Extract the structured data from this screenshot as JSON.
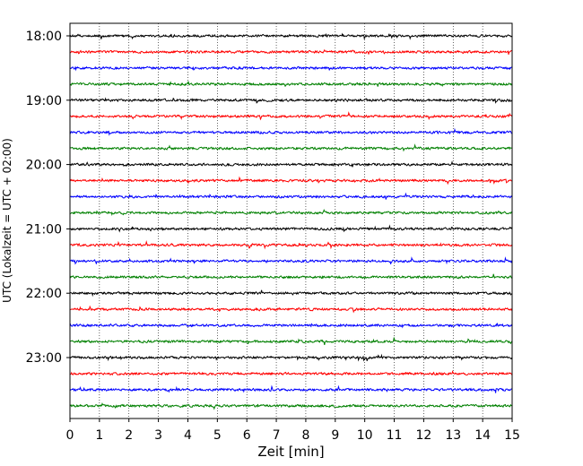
{
  "chart_data": {
    "type": "line",
    "title": "",
    "xlabel": "Zeit  [min]",
    "ylabel": "UTC (Lokalzeit = UTC + 02:00)",
    "xlim": [
      0,
      15
    ],
    "x_ticks": [
      "0",
      "1",
      "2",
      "3",
      "4",
      "5",
      "6",
      "7",
      "8",
      "9",
      "10",
      "11",
      "12",
      "13",
      "14",
      "15"
    ],
    "y_tick_labels": [
      "18:00",
      "19:00",
      "20:00",
      "21:00",
      "22:00",
      "23:00"
    ],
    "grid": "vertical dotted lines at each minute",
    "trace_interval_minutes": 15,
    "start_time": "18:00",
    "trace_count": 24,
    "trace_colors": [
      "#000000",
      "#ff0000",
      "#0000ff",
      "#008000"
    ]
  }
}
